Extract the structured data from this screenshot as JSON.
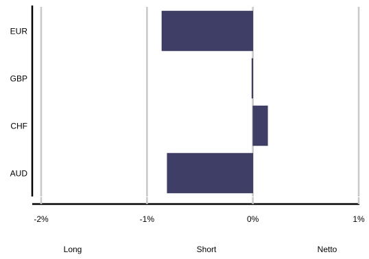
{
  "chart_data": {
    "type": "bar",
    "orientation": "horizontal",
    "categories": [
      "EUR",
      "GBP",
      "CHF",
      "AUD"
    ],
    "series": [
      {
        "values": [
          -0.86,
          -0.01,
          0.14,
          -0.81
        ]
      }
    ],
    "xlim": [
      -2,
      1
    ],
    "x_ticks": [
      -2,
      -1,
      0,
      1
    ],
    "x_tick_labels": [
      "-2%",
      "-1%",
      "0%",
      "1%"
    ],
    "grid": true,
    "bar_color": "#3f3e66",
    "legend": {
      "placement": "bottom",
      "items": [
        "Long",
        "Short",
        "Netto"
      ]
    }
  }
}
